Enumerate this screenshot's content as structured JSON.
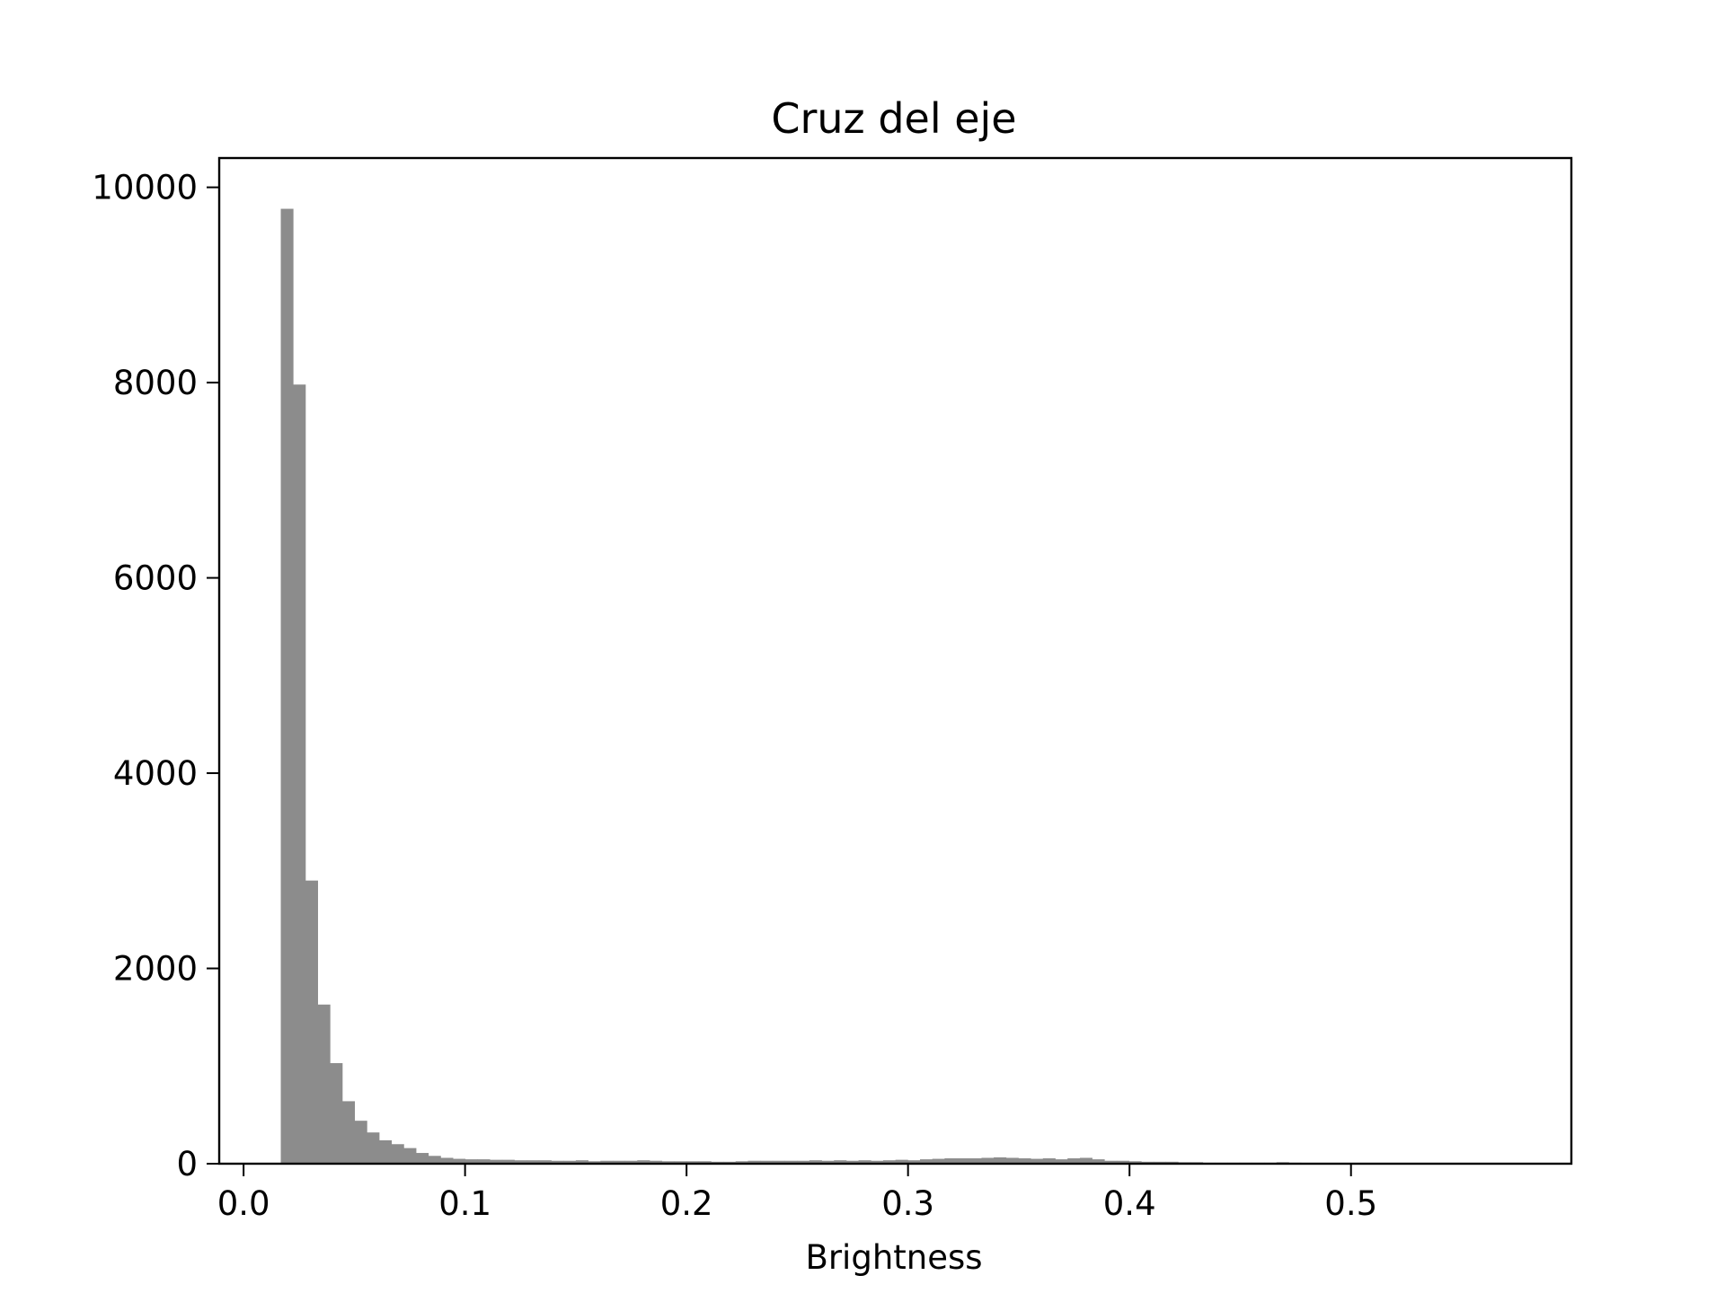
{
  "chart_data": {
    "type": "bar",
    "title": "Cruz del eje",
    "xlabel": "Brightness",
    "ylabel": "",
    "xlim": [
      -0.011,
      0.5995
    ],
    "ylim": [
      0,
      10300
    ],
    "x_ticks": [
      {
        "value": 0.0,
        "label": "0.0"
      },
      {
        "value": 0.1,
        "label": "0.1"
      },
      {
        "value": 0.2,
        "label": "0.2"
      },
      {
        "value": 0.3,
        "label": "0.3"
      },
      {
        "value": 0.4,
        "label": "0.4"
      },
      {
        "value": 0.5,
        "label": "0.5"
      }
    ],
    "y_ticks": [
      {
        "value": 0,
        "label": "0"
      },
      {
        "value": 2000,
        "label": "2000"
      },
      {
        "value": 4000,
        "label": "4000"
      },
      {
        "value": 6000,
        "label": "6000"
      },
      {
        "value": 8000,
        "label": "8000"
      },
      {
        "value": 10000,
        "label": "10000"
      }
    ],
    "bin_start": 0.0168,
    "bin_width": 0.00555,
    "values": [
      9780,
      7980,
      2900,
      1630,
      1030,
      640,
      440,
      320,
      240,
      200,
      160,
      110,
      80,
      60,
      50,
      45,
      45,
      40,
      40,
      35,
      35,
      35,
      30,
      30,
      35,
      25,
      30,
      30,
      30,
      35,
      30,
      25,
      25,
      25,
      25,
      20,
      20,
      25,
      30,
      30,
      30,
      30,
      30,
      35,
      30,
      35,
      30,
      35,
      30,
      35,
      40,
      35,
      45,
      50,
      55,
      55,
      55,
      60,
      65,
      60,
      55,
      50,
      55,
      45,
      55,
      60,
      45,
      30,
      30,
      25,
      20,
      20,
      20,
      15,
      15,
      10,
      10,
      10,
      10,
      10,
      10,
      15,
      10,
      5,
      5,
      5,
      5,
      5,
      5,
      5,
      5
    ],
    "bar_color": "#8c8c8c",
    "frame_color": "#000000",
    "grid": false
  }
}
